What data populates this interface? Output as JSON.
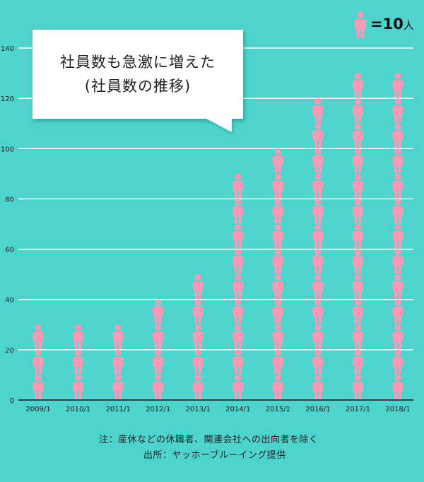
{
  "chart_data": {
    "type": "bar",
    "categories": [
      "2009/1",
      "2010/1",
      "2011/1",
      "2012/1",
      "2013/1",
      "2014/1",
      "2015/1",
      "2016/1",
      "2017/1",
      "2018/1"
    ],
    "values": [
      30,
      30,
      30,
      40,
      50,
      90,
      100,
      120,
      130,
      130
    ],
    "ylim": [
      0,
      140
    ],
    "yticks": [
      0,
      20,
      40,
      60,
      80,
      100,
      120,
      140
    ],
    "grid": true,
    "mark": "person-icon",
    "icon_unit_value": 10,
    "bar_color": "#f79ab6",
    "background_color": "#4fd4cd"
  },
  "callout": {
    "line1": "社員数も急激に増えた",
    "line2": "(社員数の推移)"
  },
  "legend": {
    "equals": "=",
    "value": "10",
    "unit": "人"
  },
  "notes": {
    "note": "注：産休などの休職者、関連会社への出向者を除く",
    "source": "出所：ヤッホーブルーイング提供"
  }
}
